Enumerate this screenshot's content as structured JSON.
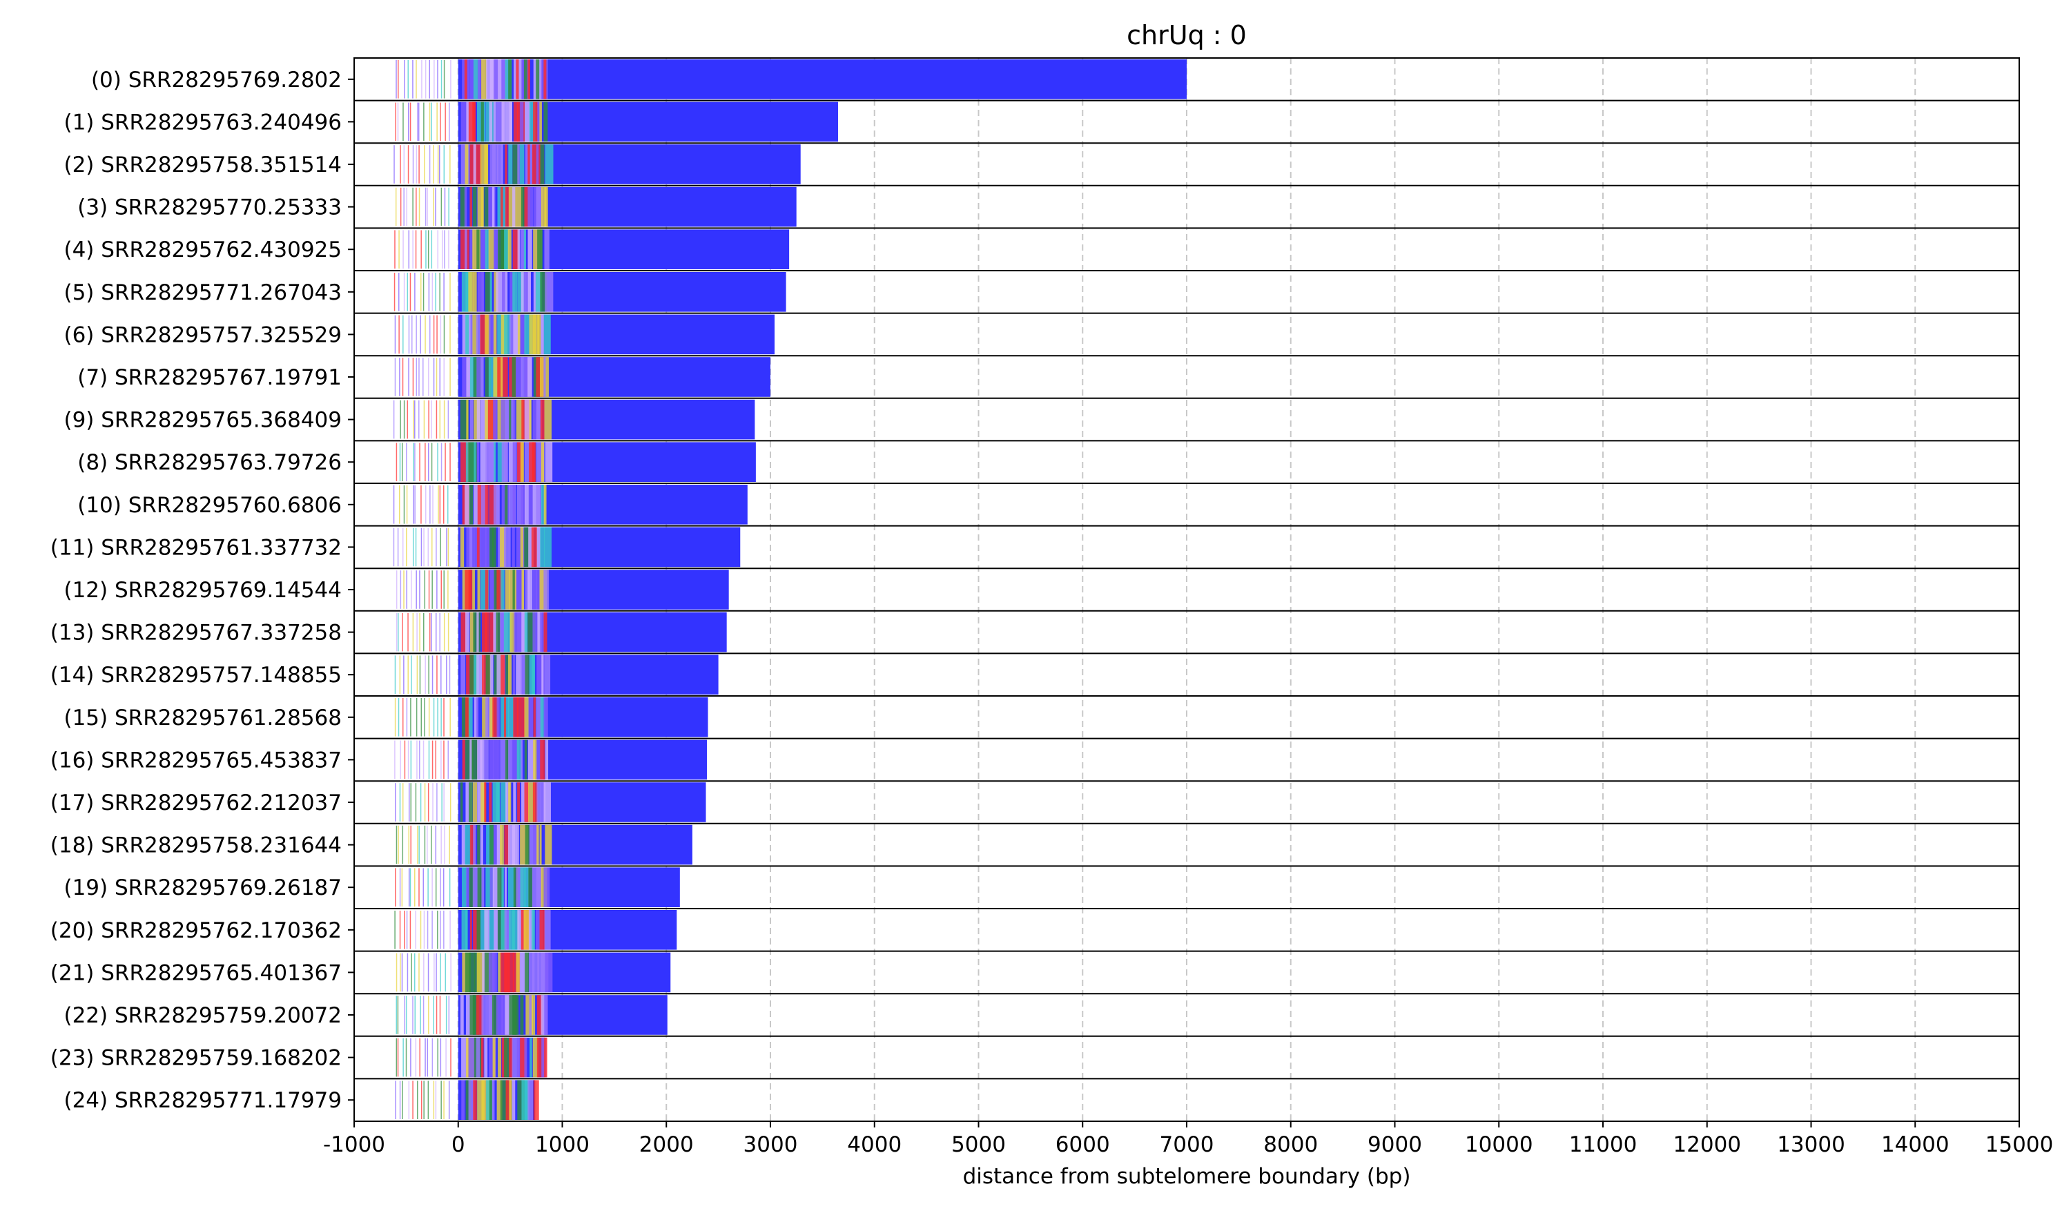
{
  "chart_data": {
    "type": "bar",
    "title": "chrUq : 0",
    "xlabel": "distance from subtelomere boundary (bp)",
    "ylabel": "",
    "xlim": [
      -1000,
      15000
    ],
    "xticks": [
      -1000,
      0,
      1000,
      2000,
      3000,
      4000,
      5000,
      6000,
      7000,
      8000,
      9000,
      10000,
      11000,
      12000,
      13000,
      14000,
      15000
    ],
    "grid": "vertical dashed",
    "colors": {
      "telomere_repeat": "#3333ff",
      "accent_red": "#ff2a2a",
      "accent_green": "#2e8b3a",
      "accent_purple": "#9b7bff",
      "accent_yellow": "#e8d33a",
      "accent_cyan": "#37c9c9"
    },
    "reads": [
      {
        "label": "(0) SRR28295769.2802",
        "start": -600,
        "end": 7000
      },
      {
        "label": "(1) SRR28295763.240496",
        "start": -600,
        "end": 3650
      },
      {
        "label": "(2) SRR28295758.351514",
        "start": -600,
        "end": 3290
      },
      {
        "label": "(3) SRR28295770.25333",
        "start": -600,
        "end": 3250
      },
      {
        "label": "(4) SRR28295762.430925",
        "start": -600,
        "end": 3180
      },
      {
        "label": "(5) SRR28295771.267043",
        "start": -600,
        "end": 3150
      },
      {
        "label": "(6) SRR28295757.325529",
        "start": -600,
        "end": 3040
      },
      {
        "label": "(7) SRR28295767.19791",
        "start": -600,
        "end": 3000
      },
      {
        "label": "(9) SRR28295765.368409",
        "start": -600,
        "end": 2850
      },
      {
        "label": "(8) SRR28295763.79726",
        "start": -600,
        "end": 2860
      },
      {
        "label": "(10) SRR28295760.6806",
        "start": -600,
        "end": 2780
      },
      {
        "label": "(11) SRR28295761.337732",
        "start": -600,
        "end": 2710
      },
      {
        "label": "(12) SRR28295769.14544",
        "start": -600,
        "end": 2600
      },
      {
        "label": "(13) SRR28295767.337258",
        "start": -600,
        "end": 2580
      },
      {
        "label": "(14) SRR28295757.148855",
        "start": -600,
        "end": 2500
      },
      {
        "label": "(15) SRR28295761.28568",
        "start": -600,
        "end": 2400
      },
      {
        "label": "(16) SRR28295765.453837",
        "start": -600,
        "end": 2390
      },
      {
        "label": "(17) SRR28295762.212037",
        "start": -600,
        "end": 2380
      },
      {
        "label": "(18) SRR28295758.231644",
        "start": -600,
        "end": 2250
      },
      {
        "label": "(19) SRR28295769.26187",
        "start": -600,
        "end": 2130
      },
      {
        "label": "(20) SRR28295762.170362",
        "start": -600,
        "end": 2100
      },
      {
        "label": "(21) SRR28295765.401367",
        "start": -600,
        "end": 2040
      },
      {
        "label": "(22) SRR28295759.20072",
        "start": -600,
        "end": 2010
      },
      {
        "label": "(23) SRR28295759.168202",
        "start": -600,
        "end": 830
      },
      {
        "label": "(24) SRR28295771.17979",
        "start": -600,
        "end": 740
      }
    ]
  }
}
